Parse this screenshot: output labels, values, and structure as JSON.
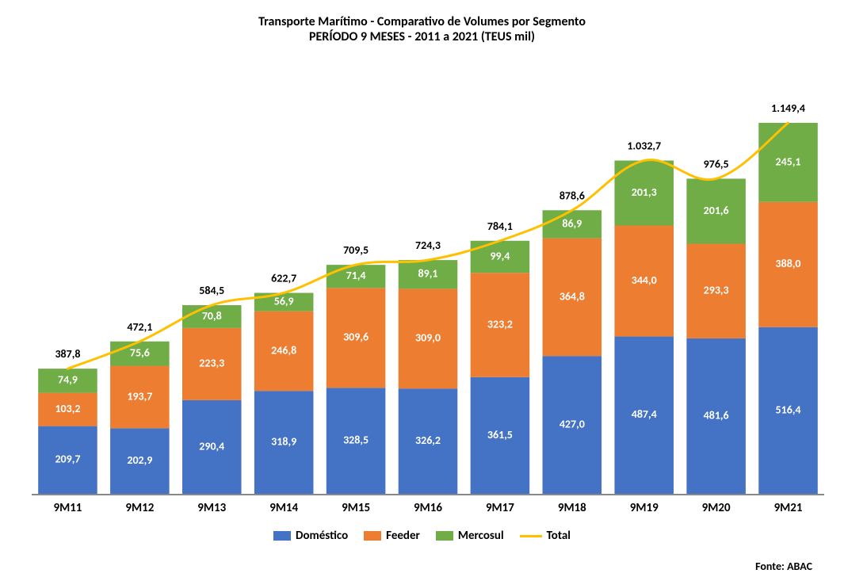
{
  "chart": {
    "type": "stacked-bar+line",
    "title_line1": "Transporte Marítimo - Comparativo de Volumes por Segmento",
    "title_line2": "PERÍODO 9 MESES - 2011 a 2021 (TEUS mil)",
    "title_fontsize": 16,
    "source_text": "Fonte: ABAC",
    "source_fontsize": 14,
    "categories": [
      "9M11",
      "9M12",
      "9M13",
      "9M14",
      "9M15",
      "9M16",
      "9M17",
      "9M18",
      "9M19",
      "9M20",
      "9M21"
    ],
    "cat_label_fontsize": 15,
    "series": {
      "Doméstico": [
        209.7,
        202.9,
        290.4,
        318.9,
        328.5,
        326.2,
        361.5,
        427.0,
        487.4,
        481.6,
        516.4
      ],
      "Feeder": [
        103.2,
        193.7,
        223.3,
        246.8,
        309.6,
        309.0,
        323.2,
        364.8,
        344.0,
        293.3,
        388.0
      ],
      "Mercosul": [
        74.9,
        75.6,
        70.8,
        56.9,
        71.4,
        89.1,
        99.4,
        86.9,
        201.3,
        201.6,
        245.1
      ]
    },
    "totals": [
      387.8,
      472.1,
      584.5,
      622.7,
      709.5,
      724.3,
      784.1,
      878.6,
      1032.7,
      976.5,
      1149.4
    ],
    "value_labels": {
      "Doméstico": [
        "209,7",
        "202,9",
        "290,4",
        "318,9",
        "328,5",
        "326,2",
        "361,5",
        "427,0",
        "487,4",
        "481,6",
        "516,4"
      ],
      "Feeder": [
        "103,2",
        "193,7",
        "223,3",
        "246,8",
        "309,6",
        "309,0",
        "323,2",
        "364,8",
        "344,0",
        "293,3",
        "388,0"
      ],
      "Mercosul": [
        "74,9",
        "75,6",
        "70,8",
        "56,9",
        "71,4",
        "89,1",
        "99,4",
        "86,9",
        "201,3",
        "201,6",
        "245,1"
      ],
      "Total": [
        "387,8",
        "472,1",
        "584,5",
        "622,7",
        "709,5",
        "724,3",
        "784,1",
        "878,6",
        "1.032,7",
        "976,5",
        "1.149,4"
      ]
    },
    "series_colors": {
      "Doméstico": "#4472c4",
      "Feeder": "#ed7d31",
      "Mercosul": "#70ad47",
      "Total": "#ffc000"
    },
    "legend": [
      {
        "label": "Doméstico",
        "key": "Doméstico",
        "type": "box"
      },
      {
        "label": "Feeder",
        "key": "Feeder",
        "type": "box"
      },
      {
        "label": "Mercosul",
        "key": "Mercosul",
        "type": "box"
      },
      {
        "label": "Total",
        "key": "Total",
        "type": "line"
      }
    ],
    "legend_fontsize": 15,
    "y_domain_max": 1260,
    "bar_width_ratio": 0.82,
    "data_label_fontsize": 14,
    "total_label_fontsize": 14,
    "line_width": 3,
    "background_color": "#ffffff"
  }
}
